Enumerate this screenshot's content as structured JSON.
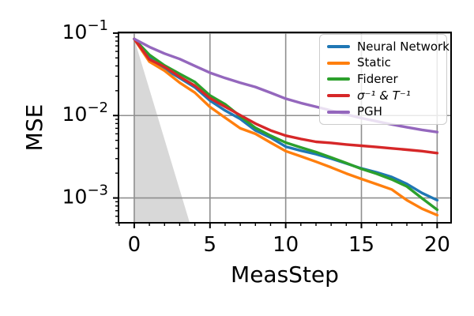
{
  "figure": {
    "background": "#ffffff",
    "border_color": "#000000",
    "text_color": "#000000"
  },
  "chart_data": {
    "type": "line",
    "title": "",
    "xlabel": "MeasStep",
    "ylabel": "MSE",
    "xscale": "linear",
    "yscale": "log",
    "xlim": [
      -1.04,
      20.92
    ],
    "ylim": [
      0.0005,
      0.102
    ],
    "grid": true,
    "grid_color": "#8f8f8f",
    "axis_color": "#000000",
    "x": [
      0,
      1,
      2,
      3,
      4,
      5,
      6,
      7,
      8,
      9,
      10,
      11,
      12,
      13,
      14,
      15,
      16,
      17,
      18,
      19,
      20
    ],
    "x_ticks": [
      0,
      5,
      10,
      15,
      20
    ],
    "x_tick_labels": [
      "0",
      "5",
      "10",
      "15",
      "20"
    ],
    "x_minor_ticks_every": 1,
    "y_ticks": [
      {
        "value": 0.1,
        "base": "10",
        "exp": "−1"
      },
      {
        "value": 0.01,
        "base": "10",
        "exp": "−2"
      },
      {
        "value": 0.001,
        "base": "10",
        "exp": "−3"
      }
    ],
    "legend_position": "upper right",
    "series": [
      {
        "id": "neural-network",
        "name": "Neural Network",
        "color": "#1f77b4",
        "values": [
          0.085,
          0.05,
          0.037,
          0.0285,
          0.022,
          0.0152,
          0.0115,
          0.0091,
          0.0066,
          0.0054,
          0.0042,
          0.00375,
          0.0034,
          0.003,
          0.00262,
          0.00228,
          0.00205,
          0.0018,
          0.00148,
          0.00115,
          0.00094
        ]
      },
      {
        "id": "static",
        "name": "Static",
        "color": "#ff7f0e",
        "values": [
          0.085,
          0.045,
          0.035,
          0.025,
          0.019,
          0.0127,
          0.0094,
          0.007,
          0.006,
          0.0047,
          0.0037,
          0.0032,
          0.00275,
          0.00235,
          0.00198,
          0.0017,
          0.00147,
          0.00127,
          0.00094,
          0.00074,
          0.00062
        ]
      },
      {
        "id": "fiderer",
        "name": "Fiderer",
        "color": "#2ca02c",
        "values": [
          0.085,
          0.0545,
          0.0405,
          0.032,
          0.0255,
          0.0175,
          0.0137,
          0.0098,
          0.0071,
          0.0057,
          0.0047,
          0.0041,
          0.0036,
          0.0031,
          0.00265,
          0.00225,
          0.00197,
          0.00168,
          0.00138,
          0.00099,
          0.00072
        ]
      },
      {
        "id": "sigma-inv-and-t-inv",
        "name": "σ⁻¹ & T⁻¹",
        "color": "#d62728",
        "math_label": true,
        "values": [
          0.085,
          0.048,
          0.039,
          0.0295,
          0.023,
          0.0162,
          0.0128,
          0.0101,
          0.008,
          0.0066,
          0.0057,
          0.0052,
          0.0048,
          0.00465,
          0.00445,
          0.0043,
          0.00415,
          0.004,
          0.00385,
          0.0037,
          0.0035
        ]
      },
      {
        "id": "pgh",
        "name": "PGH",
        "color": "#9467bd",
        "values": [
          0.085,
          0.068,
          0.0565,
          0.0485,
          0.04,
          0.033,
          0.0285,
          0.025,
          0.0222,
          0.0189,
          0.016,
          0.0142,
          0.0128,
          0.0115,
          0.0103,
          0.0093,
          0.0085,
          0.0078,
          0.0072,
          0.0067,
          0.0063
        ]
      }
    ],
    "shaded_region": {
      "id": "lower-bound-wedge",
      "color": "#d8d8d8",
      "points": [
        [
          0,
          0.085
        ],
        [
          3.66,
          0.0005
        ],
        [
          0,
          0.0005
        ]
      ]
    }
  }
}
